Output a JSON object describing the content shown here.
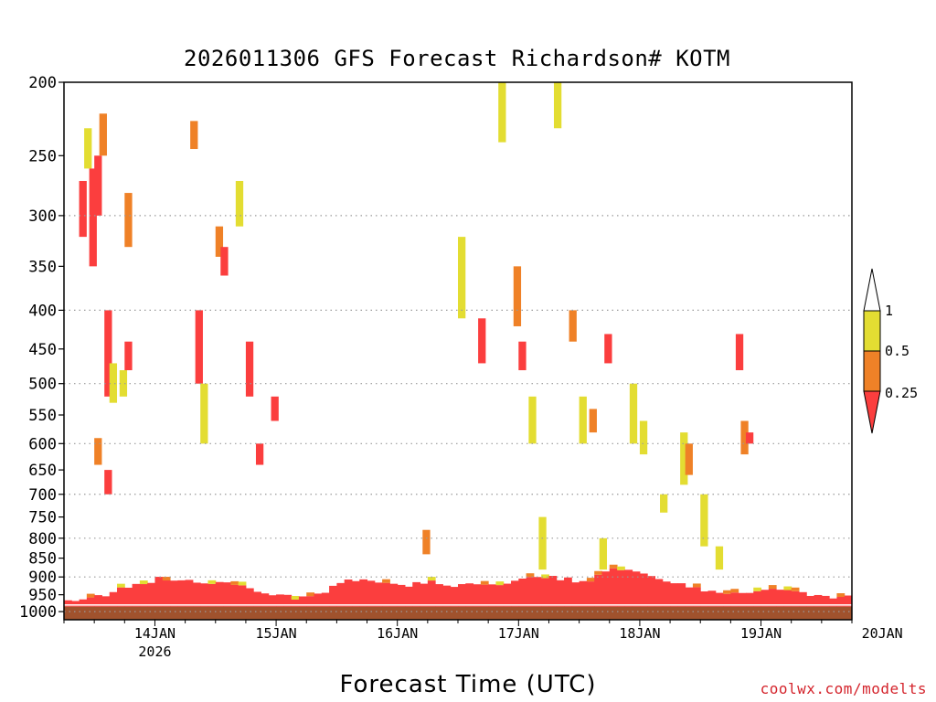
{
  "chart_data": {
    "type": "heatmap",
    "title": "2026011306 GFS Forecast Richardson# KOTM",
    "xlabel": "Forecast Time (UTC)",
    "ylabel": "",
    "x_ticks": [
      "14JAN",
      "15JAN",
      "16JAN",
      "17JAN",
      "18JAN",
      "19JAN",
      "20JAN"
    ],
    "x_year_label": "2026",
    "x_range_hours": [
      6,
      162
    ],
    "y_ticks": [
      200,
      250,
      300,
      350,
      400,
      450,
      500,
      550,
      600,
      650,
      700,
      750,
      800,
      850,
      900,
      950,
      1000
    ],
    "y_units": "hPa",
    "y_range": [
      200,
      1025
    ],
    "y_scale": "log",
    "grid_levels": [
      300,
      400,
      500,
      600,
      700,
      800,
      900,
      1000
    ],
    "grid": "dotted horizontal",
    "legend": {
      "placement": "right",
      "labels": [
        "1",
        "0.5",
        "0.25"
      ],
      "bins": [
        {
          "range": "0.5-1",
          "color": "#e3dd32"
        },
        {
          "range": "0.25-0.5",
          "color": "#ef8127"
        },
        {
          "range": "<0.25",
          "color": "#fb3e3e"
        }
      ]
    },
    "colors": {
      "yellow": "#e3dd32",
      "orange": "#ef8127",
      "red": "#fb3e3e",
      "ground": "#a0522d"
    },
    "boundary_layer": {
      "description_levels": "low Richardson number layer near surface",
      "top_hPa_by_hour": [
        [
          6,
          965
        ],
        [
          12,
          955
        ],
        [
          18,
          925
        ],
        [
          24,
          905
        ],
        [
          30,
          915
        ],
        [
          36,
          915
        ],
        [
          42,
          935
        ],
        [
          48,
          955
        ],
        [
          54,
          960
        ],
        [
          60,
          915
        ],
        [
          66,
          910
        ],
        [
          72,
          925
        ],
        [
          78,
          915
        ],
        [
          84,
          925
        ],
        [
          90,
          920
        ],
        [
          96,
          905
        ],
        [
          102,
          900
        ],
        [
          108,
          915
        ],
        [
          114,
          880
        ],
        [
          120,
          895
        ],
        [
          126,
          915
        ],
        [
          132,
          935
        ],
        [
          138,
          945
        ],
        [
          144,
          935
        ],
        [
          150,
          945
        ],
        [
          156,
          955
        ],
        [
          162,
          960
        ]
      ],
      "surface_hPa": 985
    },
    "cells": [
      {
        "h": 9,
        "p": [
          270,
          320
        ],
        "c": "red"
      },
      {
        "h": 10,
        "p": [
          230,
          260
        ],
        "c": "yellow"
      },
      {
        "h": 11,
        "p": [
          260,
          350
        ],
        "c": "red"
      },
      {
        "h": 12,
        "p": [
          250,
          300
        ],
        "c": "red"
      },
      {
        "h": 13,
        "p": [
          220,
          250
        ],
        "c": "orange"
      },
      {
        "h": 14,
        "p": [
          400,
          520
        ],
        "c": "red"
      },
      {
        "h": 12,
        "p": [
          590,
          640
        ],
        "c": "orange"
      },
      {
        "h": 14,
        "p": [
          650,
          700
        ],
        "c": "red"
      },
      {
        "h": 15,
        "p": [
          470,
          530
        ],
        "c": "yellow"
      },
      {
        "h": 17,
        "p": [
          480,
          520
        ],
        "c": "yellow"
      },
      {
        "h": 18,
        "p": [
          280,
          330
        ],
        "c": "orange"
      },
      {
        "h": 18,
        "p": [
          440,
          480
        ],
        "c": "red"
      },
      {
        "h": 31,
        "p": [
          225,
          245
        ],
        "c": "orange"
      },
      {
        "h": 32,
        "p": [
          400,
          500
        ],
        "c": "red"
      },
      {
        "h": 33,
        "p": [
          500,
          600
        ],
        "c": "yellow"
      },
      {
        "h": 36,
        "p": [
          310,
          340
        ],
        "c": "orange"
      },
      {
        "h": 37,
        "p": [
          330,
          360
        ],
        "c": "red"
      },
      {
        "h": 40,
        "p": [
          270,
          310
        ],
        "c": "yellow"
      },
      {
        "h": 42,
        "p": [
          440,
          520
        ],
        "c": "red"
      },
      {
        "h": 44,
        "p": [
          600,
          640
        ],
        "c": "red"
      },
      {
        "h": 47,
        "p": [
          520,
          560
        ],
        "c": "red"
      },
      {
        "h": 77,
        "p": [
          780,
          840
        ],
        "c": "orange"
      },
      {
        "h": 84,
        "p": [
          320,
          410
        ],
        "c": "yellow"
      },
      {
        "h": 88,
        "p": [
          410,
          470
        ],
        "c": "red"
      },
      {
        "h": 92,
        "p": [
          200,
          240
        ],
        "c": "yellow"
      },
      {
        "h": 95,
        "p": [
          350,
          420
        ],
        "c": "orange"
      },
      {
        "h": 96,
        "p": [
          440,
          480
        ],
        "c": "red"
      },
      {
        "h": 98,
        "p": [
          520,
          600
        ],
        "c": "yellow"
      },
      {
        "h": 100,
        "p": [
          750,
          880
        ],
        "c": "yellow"
      },
      {
        "h": 103,
        "p": [
          200,
          230
        ],
        "c": "yellow"
      },
      {
        "h": 106,
        "p": [
          400,
          440
        ],
        "c": "orange"
      },
      {
        "h": 108,
        "p": [
          520,
          600
        ],
        "c": "yellow"
      },
      {
        "h": 110,
        "p": [
          540,
          580
        ],
        "c": "orange"
      },
      {
        "h": 112,
        "p": [
          800,
          880
        ],
        "c": "yellow"
      },
      {
        "h": 113,
        "p": [
          430,
          470
        ],
        "c": "red"
      },
      {
        "h": 118,
        "p": [
          500,
          600
        ],
        "c": "yellow"
      },
      {
        "h": 120,
        "p": [
          560,
          620
        ],
        "c": "yellow"
      },
      {
        "h": 124,
        "p": [
          700,
          740
        ],
        "c": "yellow"
      },
      {
        "h": 128,
        "p": [
          580,
          680
        ],
        "c": "yellow"
      },
      {
        "h": 129,
        "p": [
          600,
          660
        ],
        "c": "orange"
      },
      {
        "h": 132,
        "p": [
          700,
          820
        ],
        "c": "yellow"
      },
      {
        "h": 135,
        "p": [
          820,
          880
        ],
        "c": "yellow"
      },
      {
        "h": 139,
        "p": [
          430,
          480
        ],
        "c": "red"
      },
      {
        "h": 140,
        "p": [
          560,
          620
        ],
        "c": "orange"
      },
      {
        "h": 141,
        "p": [
          580,
          600
        ],
        "c": "red"
      }
    ]
  },
  "credit": "coolwx.com/modelts"
}
